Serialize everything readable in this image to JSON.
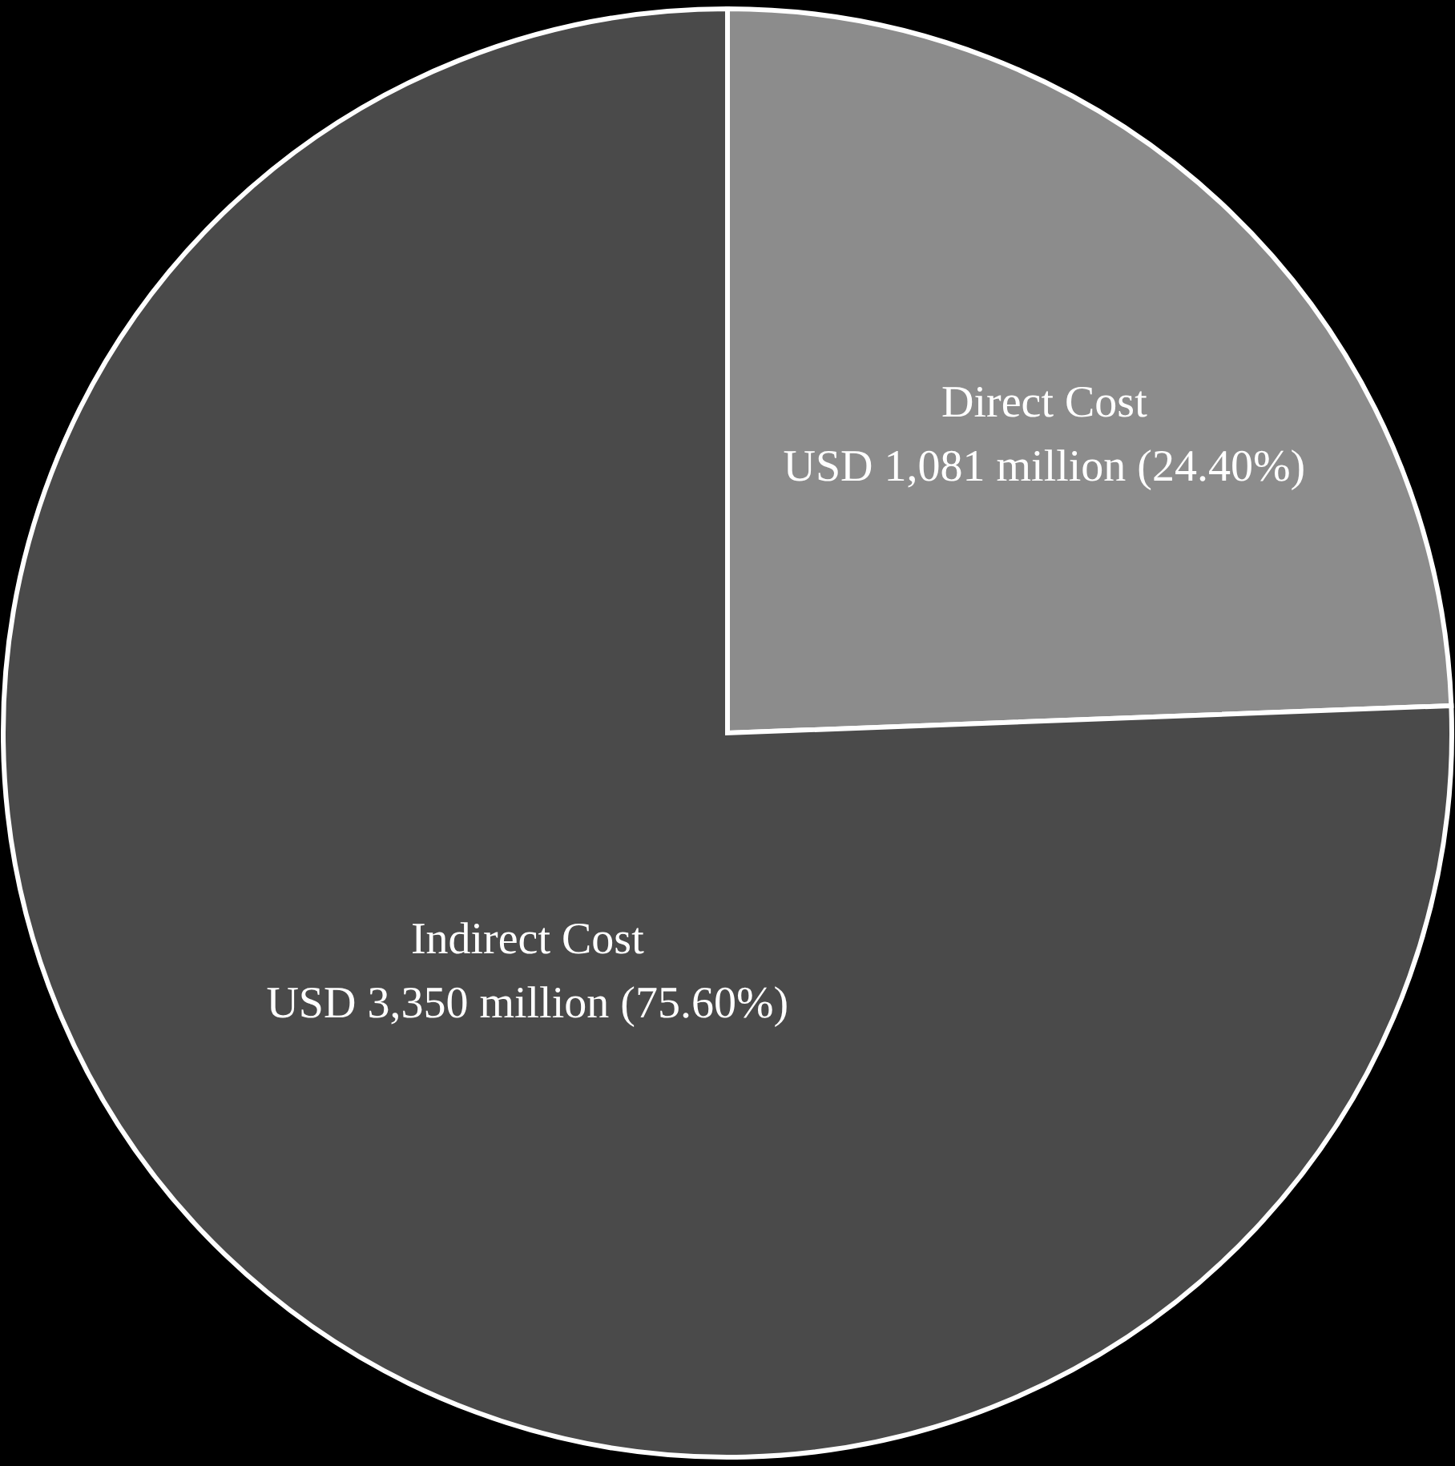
{
  "chart_data": {
    "type": "pie",
    "categories": [
      "Direct Cost",
      "Indirect Cost"
    ],
    "values": [
      24.4,
      75.6
    ],
    "colors": [
      "#8c8c8c",
      "#4a4a4a"
    ],
    "value_labels": [
      "USD 1,081 million (24.40%)",
      "USD 3,350 million (75.60%)"
    ]
  }
}
